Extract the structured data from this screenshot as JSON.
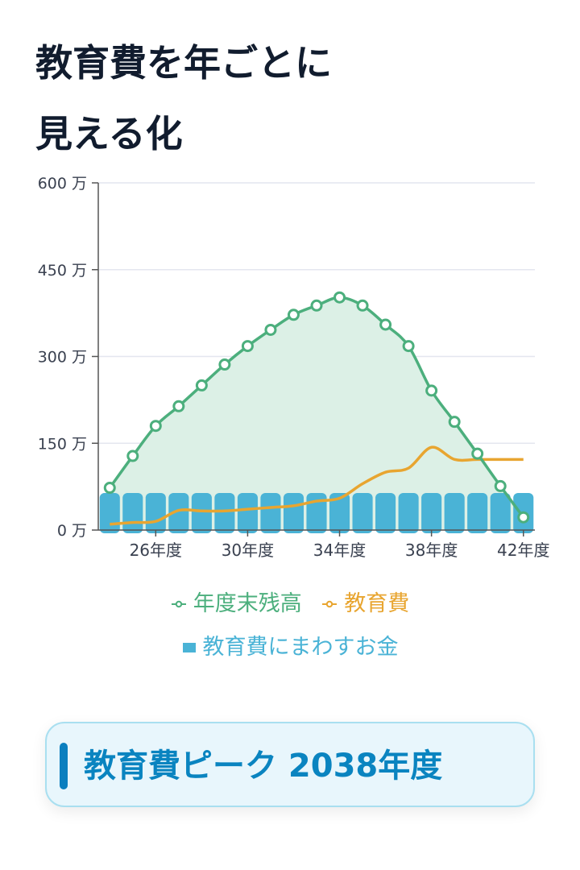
{
  "title_line1": "教育費を年ごとに",
  "title_line2": "見える化",
  "peak_label": "教育費ピーク 2038年度",
  "colors": {
    "balance": "#4caf7d",
    "balance_fill": "#dcf0e6",
    "expense": "#e8a530",
    "allocation": "#4ab3d6",
    "grid": "#e4e6ef",
    "axis": "#555555"
  },
  "chart_data": {
    "type": "line",
    "x": [
      2024,
      2025,
      2026,
      2027,
      2028,
      2029,
      2030,
      2031,
      2032,
      2033,
      2034,
      2035,
      2036,
      2037,
      2038,
      2039,
      2040,
      2041,
      2042
    ],
    "xticks": [
      {
        "x": 2026,
        "label": "26年度"
      },
      {
        "x": 2030,
        "label": "30年度"
      },
      {
        "x": 2034,
        "label": "34年度"
      },
      {
        "x": 2038,
        "label": "38年度"
      },
      {
        "x": 2042,
        "label": "42年度"
      }
    ],
    "yticks": [
      {
        "value": 0,
        "label": "0 万"
      },
      {
        "value": 150,
        "label": "150 万"
      },
      {
        "value": 300,
        "label": "300 万"
      },
      {
        "value": 450,
        "label": "450 万"
      },
      {
        "value": 600,
        "label": "600 万"
      }
    ],
    "ylim": [
      0,
      600
    ],
    "xlim": [
      2023.5,
      2042.5
    ],
    "grid": true,
    "legend_position": "bottom",
    "series": [
      {
        "name": "年度末残高",
        "kind": "area-line",
        "values": [
          73,
          128,
          180,
          214,
          250,
          286,
          318,
          346,
          372,
          388,
          402,
          388,
          355,
          318,
          241,
          187,
          132,
          76,
          22
        ]
      },
      {
        "name": "教育費",
        "kind": "line",
        "values": [
          10,
          13,
          15,
          34,
          33,
          33,
          36,
          39,
          42,
          50,
          55,
          80,
          100,
          107,
          143,
          122,
          122,
          122,
          122
        ]
      },
      {
        "name": "教育費にまわすお金",
        "kind": "bar",
        "values": [
          64,
          64,
          64,
          64,
          64,
          64,
          64,
          64,
          64,
          64,
          64,
          64,
          64,
          64,
          64,
          64,
          64,
          64,
          64
        ]
      }
    ]
  }
}
